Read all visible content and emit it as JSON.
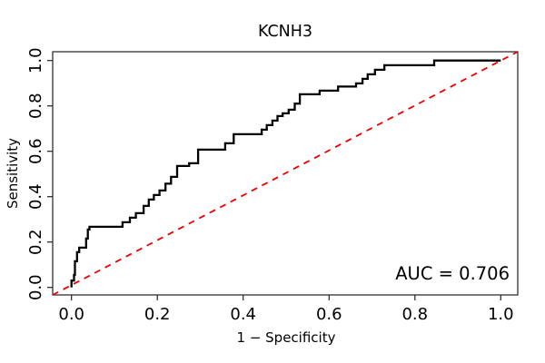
{
  "chart_data": {
    "type": "line",
    "subtype": "roc-step-curve",
    "title": "KCNH3",
    "xlabel": "1 − Specificity",
    "ylabel": "Sensitivity",
    "xlim": [
      0,
      1
    ],
    "ylim": [
      0,
      1
    ],
    "grid": "off",
    "x_ticks": [
      "0.0",
      "0.2",
      "0.4",
      "0.6",
      "0.8",
      "1.0"
    ],
    "y_ticks": [
      "0.0",
      "0.2",
      "0.4",
      "0.6",
      "0.8",
      "1.0"
    ],
    "auc": 0.706,
    "auc_label": "AUC = 0.706",
    "colors": {
      "curve": "#000000",
      "reference_line": "#EE0000",
      "axis": "#222222",
      "text": "#000000",
      "background": "#ffffff"
    },
    "reference_line": {
      "from": [
        0,
        0
      ],
      "to": [
        1,
        1
      ],
      "style": "dashed",
      "meaning": "chance diagonal"
    },
    "series": [
      {
        "name": "ROC curve (sensitivity vs 1-specificity)",
        "step_points": [
          [
            0.0,
            0.0
          ],
          [
            0.0,
            0.03
          ],
          [
            0.006,
            0.055
          ],
          [
            0.008,
            0.115
          ],
          [
            0.013,
            0.155
          ],
          [
            0.018,
            0.175
          ],
          [
            0.034,
            0.215
          ],
          [
            0.038,
            0.255
          ],
          [
            0.042,
            0.267
          ],
          [
            0.119,
            0.287
          ],
          [
            0.136,
            0.307
          ],
          [
            0.15,
            0.327
          ],
          [
            0.168,
            0.359
          ],
          [
            0.18,
            0.387
          ],
          [
            0.192,
            0.407
          ],
          [
            0.205,
            0.427
          ],
          [
            0.219,
            0.457
          ],
          [
            0.232,
            0.487
          ],
          [
            0.246,
            0.535
          ],
          [
            0.274,
            0.547
          ],
          [
            0.295,
            0.607
          ],
          [
            0.358,
            0.635
          ],
          [
            0.378,
            0.675
          ],
          [
            0.443,
            0.695
          ],
          [
            0.455,
            0.715
          ],
          [
            0.468,
            0.735
          ],
          [
            0.48,
            0.755
          ],
          [
            0.492,
            0.767
          ],
          [
            0.506,
            0.783
          ],
          [
            0.52,
            0.81
          ],
          [
            0.532,
            0.851
          ],
          [
            0.578,
            0.867
          ],
          [
            0.621,
            0.885
          ],
          [
            0.663,
            0.899
          ],
          [
            0.678,
            0.919
          ],
          [
            0.69,
            0.939
          ],
          [
            0.707,
            0.959
          ],
          [
            0.729,
            0.979
          ],
          [
            0.845,
            1.0
          ],
          [
            1.0,
            1.0
          ]
        ]
      }
    ]
  }
}
